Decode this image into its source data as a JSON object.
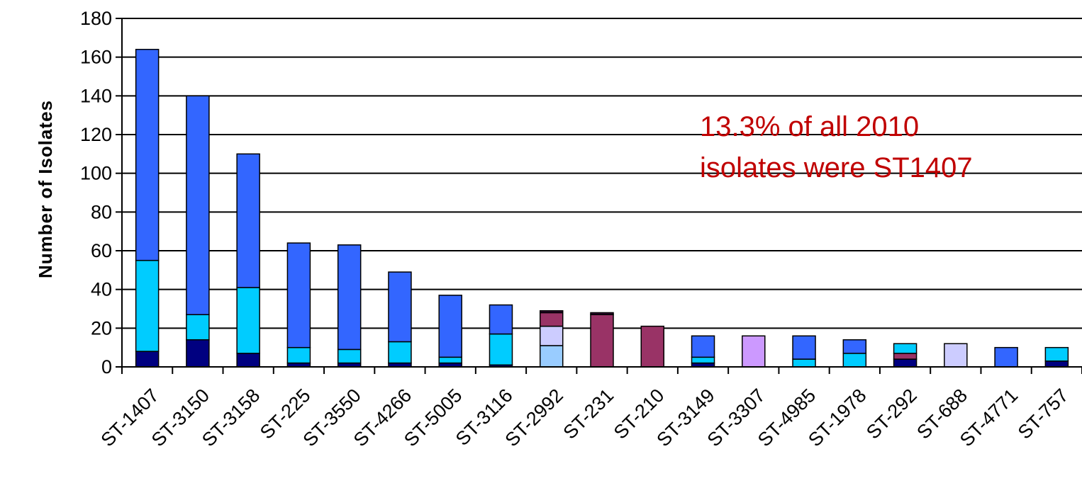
{
  "chart_data": {
    "type": "bar",
    "stacked": true,
    "ylabel": "Number of Isolates",
    "xlabel": "",
    "ylim": [
      0,
      180
    ],
    "yticks": [
      0,
      20,
      40,
      60,
      80,
      100,
      120,
      140,
      160,
      180
    ],
    "grid": true,
    "categories": [
      "ST-1407",
      "ST-3150",
      "ST-3158",
      "ST-225",
      "ST-3550",
      "ST-4266",
      "ST-5005",
      "ST-3116",
      "ST-2992",
      "ST-231",
      "ST-210",
      "ST-3149",
      "ST-3307",
      "ST-4985",
      "ST-1978",
      "ST-292",
      "ST-688",
      "ST-4771",
      "ST-757"
    ],
    "series": [
      {
        "color": "#000080",
        "values": [
          8,
          14,
          7,
          2,
          2,
          2,
          2,
          1,
          0,
          0,
          0,
          2,
          0,
          0,
          0,
          4,
          0,
          0,
          3
        ]
      },
      {
        "color": "#00ccff",
        "values": [
          47,
          13,
          34,
          8,
          7,
          11,
          3,
          16,
          0,
          0,
          0,
          3,
          0,
          4,
          7,
          0,
          0,
          0,
          7
        ]
      },
      {
        "color": "#99ccff",
        "values": [
          0,
          0,
          0,
          0,
          0,
          0,
          0,
          0,
          11,
          0,
          0,
          0,
          0,
          0,
          0,
          0,
          0,
          0,
          0
        ]
      },
      {
        "color": "#ccccff",
        "values": [
          0,
          0,
          0,
          0,
          0,
          0,
          0,
          0,
          10,
          0,
          0,
          0,
          0,
          0,
          0,
          0,
          12,
          0,
          0
        ]
      },
      {
        "color": "#cc99ff",
        "values": [
          0,
          0,
          0,
          0,
          0,
          0,
          0,
          0,
          0,
          0,
          0,
          0,
          16,
          0,
          0,
          0,
          0,
          0,
          0
        ]
      },
      {
        "color": "#993366",
        "values": [
          0,
          0,
          0,
          0,
          0,
          0,
          0,
          0,
          7,
          27,
          21,
          0,
          0,
          0,
          0,
          3,
          0,
          0,
          0
        ]
      },
      {
        "color": "#330033",
        "values": [
          0,
          0,
          0,
          0,
          0,
          0,
          0,
          0,
          1,
          1,
          0,
          0,
          0,
          0,
          0,
          0,
          0,
          0,
          0
        ]
      },
      {
        "color": "#3366ff",
        "values": [
          109,
          113,
          69,
          54,
          54,
          36,
          32,
          15,
          0,
          0,
          0,
          11,
          0,
          12,
          7,
          0,
          0,
          10,
          0
        ]
      },
      {
        "color": "#00ccff",
        "values": [
          0,
          0,
          0,
          0,
          0,
          0,
          0,
          0,
          0,
          0,
          0,
          0,
          0,
          0,
          0,
          5,
          0,
          0,
          0
        ]
      }
    ],
    "annotation": [
      "13.3% of all 2010",
      "isolates were ST1407"
    ]
  }
}
